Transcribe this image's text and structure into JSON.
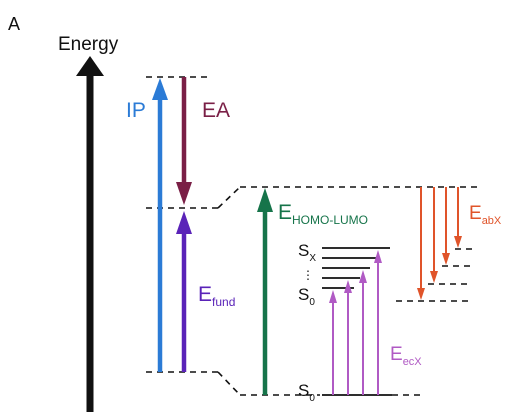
{
  "panel_label": "A",
  "axis_label": "Energy",
  "labels": {
    "ip": "IP",
    "ea": "EA",
    "e_fund": {
      "main": "E",
      "sub": "fund"
    },
    "e_homo_lumo": {
      "main": "E",
      "sub": "HOMO-LUMO"
    },
    "e_abx": {
      "main": "E",
      "sub": "abX"
    },
    "e_ecx": {
      "main": "E",
      "sub": "ecX"
    },
    "s_x": {
      "main": "S",
      "sub": "X"
    },
    "s_0_upper": {
      "main": "S",
      "sub": "0"
    },
    "s_0_lower": {
      "main": "S",
      "sub": "0"
    },
    "vdots": "⋮"
  },
  "colors": {
    "axis": "#111111",
    "ip": "#2b7bd6",
    "ea": "#7a1f46",
    "e_fund": "#5a23b8",
    "e_homo_lumo": "#16744a",
    "e_abx": "#e0542a",
    "e_ecx": "#b05ac4",
    "levels": "#111111"
  }
}
